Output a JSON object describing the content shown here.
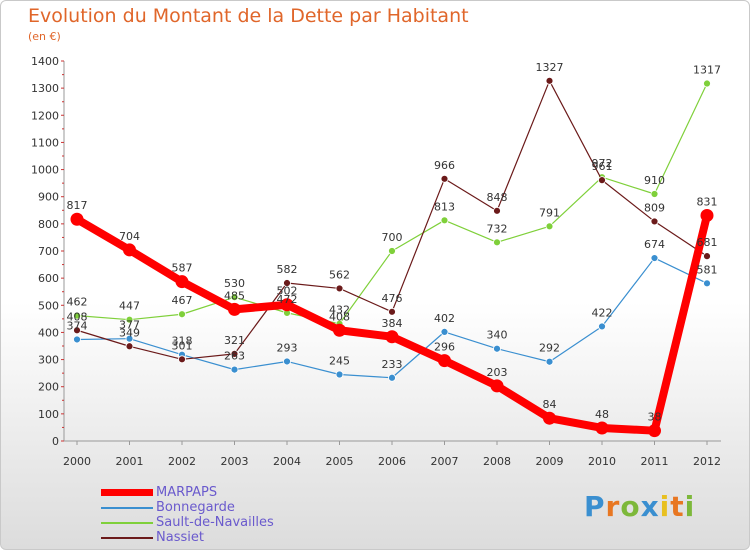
{
  "title": "Evolution du Montant de la Dette par Habitant",
  "subtitle": "(en €)",
  "logo": {
    "text": "Proxiti",
    "colors": [
      "#3a8fd0",
      "#e87722",
      "#7db83a",
      "#3a8fd0",
      "#e8c020",
      "#e87722",
      "#7db83a"
    ]
  },
  "chart_data": {
    "type": "line",
    "title": "Evolution du Montant de la Dette par Habitant",
    "subtitle": "(en €)",
    "x": [
      "2000",
      "2001",
      "2002",
      "2003",
      "2004",
      "2005",
      "2006",
      "2007",
      "2008",
      "2009",
      "2010",
      "2011",
      "2012"
    ],
    "ylim": [
      0,
      1400
    ],
    "yticks": [
      0,
      100,
      200,
      300,
      400,
      500,
      600,
      700,
      800,
      900,
      1000,
      1100,
      1200,
      1300,
      1400
    ],
    "grid": false,
    "legend_position": "bottom-left",
    "series": [
      {
        "name": "MARPAPS",
        "color": "#ff0000",
        "values": [
          817,
          704,
          587,
          485,
          502,
          408,
          384,
          296,
          203,
          84,
          48,
          38,
          831
        ]
      },
      {
        "name": "Bonnegarde",
        "color": "#3a8fd0",
        "values": [
          374,
          377,
          318,
          263,
          293,
          245,
          233,
          402,
          340,
          292,
          422,
          674,
          581
        ]
      },
      {
        "name": "Sault-de-Navailles",
        "color": "#7fd03a",
        "values": [
          462,
          447,
          467,
          530,
          472,
          432,
          700,
          813,
          732,
          791,
          972,
          910,
          1317
        ]
      },
      {
        "name": "Nassiet",
        "color": "#6b1a1a",
        "values": [
          408,
          349,
          301,
          321,
          582,
          562,
          476,
          966,
          848,
          1327,
          961,
          809,
          681
        ]
      }
    ]
  }
}
